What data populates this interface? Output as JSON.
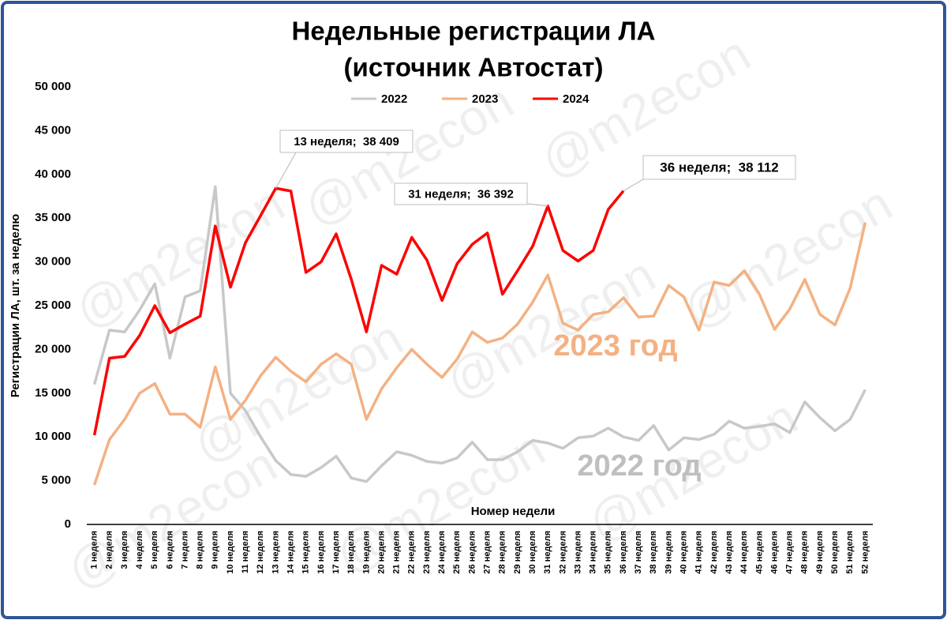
{
  "chart_data": {
    "type": "line",
    "title": "Недельные регистрации ЛА",
    "subtitle": "(источник Автостат)",
    "y_label": "Регистрации ЛА, шт. за неделю",
    "x_label": "Номер недели",
    "watermark": "@m2econ",
    "annotations": [
      {
        "text": "2023 год",
        "color": "#f4b183"
      },
      {
        "text": "2022 год",
        "color": "#bfbfbf"
      }
    ],
    "categories": [
      "1 неделя",
      "2 неделя",
      "3 неделя",
      "4 неделя",
      "5 неделя",
      "6 неделя",
      "7 неделя",
      "8 неделя",
      "9 неделя",
      "10 неделя",
      "11 неделя",
      "12 неделя",
      "13 неделя",
      "14 неделя",
      "15 неделя",
      "16 неделя",
      "17 неделя",
      "18 неделя",
      "19 неделя",
      "20 неделя",
      "21 неделя",
      "22 неделя",
      "23 неделя",
      "24 неделя",
      "25 неделя",
      "26 неделя",
      "27 неделя",
      "28 неделя",
      "29 неделя",
      "30 неделя",
      "31 неделя",
      "32 неделя",
      "33 неделя",
      "34 неделя",
      "35 неделя",
      "36 неделя",
      "37 неделя",
      "38 неделя",
      "39 неделя",
      "40 неделя",
      "41 неделя",
      "42 неделя",
      "43 неделя",
      "44 неделя",
      "45 неделя",
      "46 неделя",
      "47 неделя",
      "48 неделя",
      "49 неделя",
      "50 неделя",
      "51 неделя",
      "52 неделя"
    ],
    "series": [
      {
        "name": "2022",
        "color": "#c8c8c8",
        "values": [
          16000,
          22200,
          22000,
          24500,
          27500,
          19000,
          26000,
          26700,
          38600,
          15000,
          13000,
          10000,
          7300,
          5700,
          5500,
          6500,
          7800,
          5300,
          4900,
          6700,
          8300,
          7900,
          7200,
          7000,
          7600,
          9400,
          7400,
          7400,
          8300,
          9600,
          9300,
          8700,
          9900,
          10100,
          11000,
          10000,
          9600,
          11300,
          8500,
          9900,
          9700,
          10300,
          11800,
          11000,
          11200,
          11500,
          10500,
          14000,
          12200,
          10700,
          12000,
          15400
        ]
      },
      {
        "name": "2023",
        "color": "#f4b183",
        "values": [
          4500,
          9700,
          12000,
          15000,
          16100,
          12600,
          12600,
          11100,
          18000,
          12000,
          14200,
          17000,
          19100,
          17500,
          16300,
          18300,
          19500,
          18300,
          12000,
          15500,
          17900,
          20000,
          18300,
          16800,
          18900,
          22000,
          20800,
          21300,
          22900,
          25400,
          28500,
          23000,
          22200,
          24000,
          24300,
          25900,
          23700,
          23800,
          27300,
          26000,
          22200,
          27700,
          27300,
          29000,
          26300,
          22300,
          24600,
          28000,
          24000,
          22800,
          27000,
          34500
        ]
      },
      {
        "name": "2024",
        "color": "#ff0000",
        "values": [
          10200,
          19000,
          19200,
          21600,
          25000,
          21900,
          22900,
          23800,
          34100,
          27100,
          32200,
          35300,
          38409,
          38100,
          28800,
          30000,
          33200,
          28000,
          22000,
          29600,
          28600,
          32800,
          30200,
          25600,
          29800,
          32000,
          33300,
          26300,
          29000,
          31800,
          36392,
          31300,
          30100,
          31300,
          36000,
          38112,
          null,
          null,
          null,
          null,
          null,
          null,
          null,
          null,
          null,
          null,
          null,
          null,
          null,
          null,
          null,
          null
        ],
        "value_labels": [
          null,
          null,
          null,
          null,
          null,
          null,
          null,
          null,
          null,
          null,
          null,
          null,
          "13 неделя;  38 409",
          null,
          null,
          null,
          null,
          null,
          null,
          null,
          null,
          null,
          null,
          null,
          null,
          null,
          null,
          null,
          null,
          null,
          "31 неделя;  36 392",
          null,
          null,
          null,
          null,
          "36 неделя;  38 112",
          null,
          null,
          null,
          null,
          null,
          null,
          null,
          null,
          null,
          null,
          null,
          null,
          null,
          null,
          null,
          null
        ]
      }
    ],
    "ylim": [
      0,
      50000
    ],
    "yticks": [
      {
        "value": 0,
        "label": "0"
      },
      {
        "value": 5000,
        "label": "5 000"
      },
      {
        "value": 10000,
        "label": "10 000"
      },
      {
        "value": 15000,
        "label": "15 000"
      },
      {
        "value": 20000,
        "label": "20 000"
      },
      {
        "value": 25000,
        "label": "25 000"
      },
      {
        "value": 30000,
        "label": "30 000"
      },
      {
        "value": 35000,
        "label": "35 000"
      },
      {
        "value": 40000,
        "label": "40 000"
      },
      {
        "value": 45000,
        "label": "45 000"
      },
      {
        "value": 50000,
        "label": "50 000"
      }
    ],
    "legend": "top",
    "grid": false
  }
}
